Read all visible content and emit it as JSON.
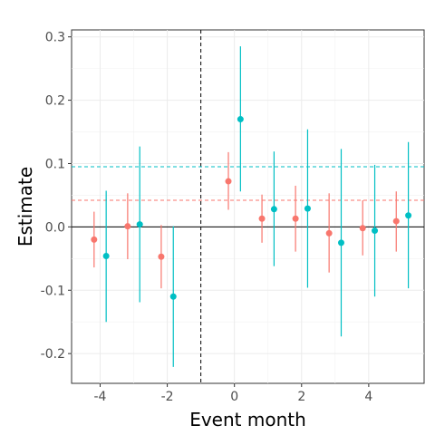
{
  "chart_data": {
    "type": "scatter",
    "title": "",
    "xlabel": "Event month",
    "ylabel": "Estimate",
    "xlim": [
      -4.85,
      5.65
    ],
    "ylim": [
      -0.247,
      0.311
    ],
    "x_ticks": [
      -4,
      -2,
      0,
      2,
      4
    ],
    "y_ticks": [
      -0.2,
      -0.1,
      0.0,
      0.1,
      0.2,
      0.3
    ],
    "x_tick_labels": [
      "-4",
      "-2",
      "0",
      "2",
      "4"
    ],
    "y_tick_labels": [
      "-0.2",
      "-0.1",
      "0.0",
      "0.1",
      "0.2",
      "0.3"
    ],
    "grid": true,
    "legend": "none",
    "event_line_x": -1,
    "zero_line_y": 0,
    "series": [
      {
        "color": "#F8766D",
        "reference_line": 0.042,
        "points": [
          {
            "x": -4,
            "y": -0.02,
            "lo": -0.064,
            "hi": 0.024
          },
          {
            "x": -3,
            "y": 0.001,
            "lo": -0.051,
            "hi": 0.053
          },
          {
            "x": -2,
            "y": -0.047,
            "lo": -0.097,
            "hi": 0.003
          },
          {
            "x": 0,
            "y": 0.072,
            "lo": 0.027,
            "hi": 0.118
          },
          {
            "x": 1,
            "y": 0.013,
            "lo": -0.025,
            "hi": 0.051
          },
          {
            "x": 2,
            "y": 0.013,
            "lo": -0.039,
            "hi": 0.065
          },
          {
            "x": 3,
            "y": -0.01,
            "lo": -0.072,
            "hi": 0.053
          },
          {
            "x": 4,
            "y": -0.002,
            "lo": -0.045,
            "hi": 0.042
          },
          {
            "x": 5,
            "y": 0.009,
            "lo": -0.039,
            "hi": 0.056
          }
        ]
      },
      {
        "color": "#00BFC4",
        "reference_line": 0.095,
        "points": [
          {
            "x": -4,
            "y": -0.046,
            "lo": -0.15,
            "hi": 0.057
          },
          {
            "x": -3,
            "y": 0.004,
            "lo": -0.119,
            "hi": 0.127
          },
          {
            "x": -2,
            "y": -0.11,
            "lo": -0.221,
            "hi": 0.001
          },
          {
            "x": 0,
            "y": 0.17,
            "lo": 0.056,
            "hi": 0.285
          },
          {
            "x": 1,
            "y": 0.028,
            "lo": -0.062,
            "hi": 0.119
          },
          {
            "x": 2,
            "y": 0.029,
            "lo": -0.096,
            "hi": 0.154
          },
          {
            "x": 3,
            "y": -0.025,
            "lo": -0.173,
            "hi": 0.123
          },
          {
            "x": 4,
            "y": -0.006,
            "lo": -0.11,
            "hi": 0.098
          },
          {
            "x": 5,
            "y": 0.018,
            "lo": -0.097,
            "hi": 0.134
          }
        ]
      }
    ]
  }
}
